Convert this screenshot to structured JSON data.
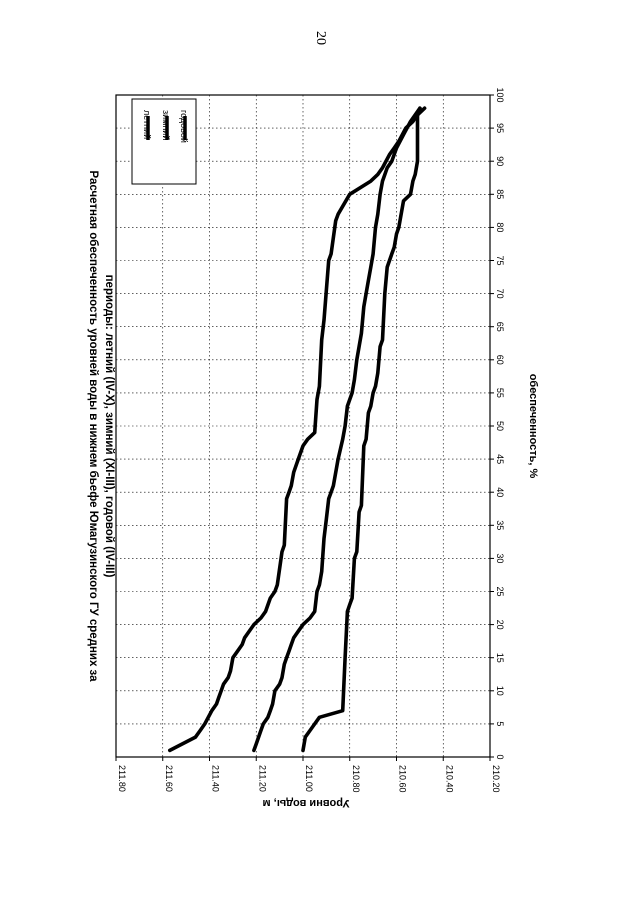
{
  "page_number": "20",
  "chart_data": {
    "type": "line",
    "orientation": "rotated-90-clockwise",
    "title_lines": [
      "Расчетная обеспеченность уровней воды в нижнем бьефе Юмагузинского ГУ средних за",
      "периоды: летний (IV-X), зимний (XI-III), годовой (IV-III)"
    ],
    "xlabel": "обеспеченность, %",
    "ylabel": "Уровни воды, м",
    "xlim": [
      0,
      100
    ],
    "ylim": [
      210.2,
      211.8
    ],
    "x_ticks": [
      "0",
      "5",
      "10",
      "15",
      "20",
      "25",
      "30",
      "35",
      "40",
      "45",
      "50",
      "55",
      "60",
      "65",
      "70",
      "75",
      "80",
      "85",
      "90",
      "95",
      "100"
    ],
    "y_ticks": [
      "210.20",
      "210.40",
      "210.60",
      "210.80",
      "211.00",
      "211.20",
      "211.40",
      "211.60",
      "211.80"
    ],
    "grid": true,
    "legend_position": "top-right",
    "series": [
      {
        "name": "летний",
        "x": [
          1,
          3,
          4,
          5,
          7,
          8,
          9,
          10,
          11,
          12,
          13,
          15,
          16,
          17,
          18,
          20,
          21,
          22,
          24,
          25,
          26,
          31,
          32,
          39,
          40,
          41,
          43,
          44,
          45,
          47,
          48,
          49,
          54,
          56,
          63,
          66,
          75,
          76,
          81,
          82,
          85,
          87,
          88,
          89,
          91,
          92,
          93,
          95,
          96,
          97,
          98
        ],
        "y": [
          211.57,
          211.46,
          211.44,
          211.42,
          211.39,
          211.37,
          211.36,
          211.35,
          211.34,
          211.32,
          211.31,
          211.3,
          211.28,
          211.26,
          211.25,
          211.21,
          211.18,
          211.16,
          211.14,
          211.12,
          211.11,
          211.09,
          211.08,
          211.07,
          211.06,
          211.05,
          211.04,
          211.03,
          211.02,
          211.0,
          210.98,
          210.95,
          210.94,
          210.93,
          210.92,
          210.91,
          210.89,
          210.88,
          210.86,
          210.85,
          210.8,
          210.71,
          210.68,
          210.66,
          210.63,
          210.61,
          210.59,
          210.56,
          210.53,
          210.51,
          210.48
        ]
      },
      {
        "name": "зимний",
        "x": [
          1,
          2,
          4,
          5,
          6,
          7,
          8,
          10,
          11,
          12,
          14,
          15,
          16,
          17,
          18,
          19,
          20,
          21,
          22,
          25,
          26,
          28,
          33,
          36,
          39,
          40,
          41,
          45,
          48,
          50,
          53,
          55,
          57,
          60,
          62,
          64,
          68,
          70,
          72,
          74,
          76,
          80,
          82,
          85,
          87,
          89,
          90,
          92,
          94,
          96,
          98
        ],
        "y": [
          211.21,
          211.2,
          211.18,
          211.17,
          211.15,
          211.14,
          211.13,
          211.12,
          211.1,
          211.09,
          211.08,
          211.07,
          211.06,
          211.05,
          211.04,
          211.02,
          211.0,
          210.97,
          210.95,
          210.94,
          210.93,
          210.92,
          210.91,
          210.9,
          210.89,
          210.88,
          210.87,
          210.85,
          210.83,
          210.82,
          210.81,
          210.79,
          210.78,
          210.77,
          210.76,
          210.75,
          210.74,
          210.73,
          210.72,
          210.71,
          210.7,
          210.69,
          210.68,
          210.67,
          210.66,
          210.64,
          210.62,
          210.6,
          210.57,
          210.54,
          210.5
        ]
      },
      {
        "name": "годовой",
        "x": [
          1,
          3,
          4,
          6,
          7,
          15,
          22,
          23,
          24,
          30,
          31,
          37,
          38,
          47,
          48,
          52,
          53,
          55,
          56,
          58,
          62,
          63,
          70,
          74,
          75,
          76,
          77,
          79,
          80,
          84,
          85,
          87,
          88,
          90,
          95,
          97,
          98
        ],
        "y": [
          211.0,
          210.99,
          210.97,
          210.93,
          210.83,
          210.82,
          210.81,
          210.8,
          210.79,
          210.78,
          210.77,
          210.76,
          210.75,
          210.74,
          210.73,
          210.72,
          210.71,
          210.7,
          210.69,
          210.68,
          210.67,
          210.66,
          210.65,
          210.64,
          210.63,
          210.62,
          210.61,
          210.6,
          210.59,
          210.57,
          210.54,
          210.53,
          210.52,
          210.51,
          210.51,
          210.51,
          210.5
        ]
      }
    ],
    "series_color": "#000000"
  }
}
